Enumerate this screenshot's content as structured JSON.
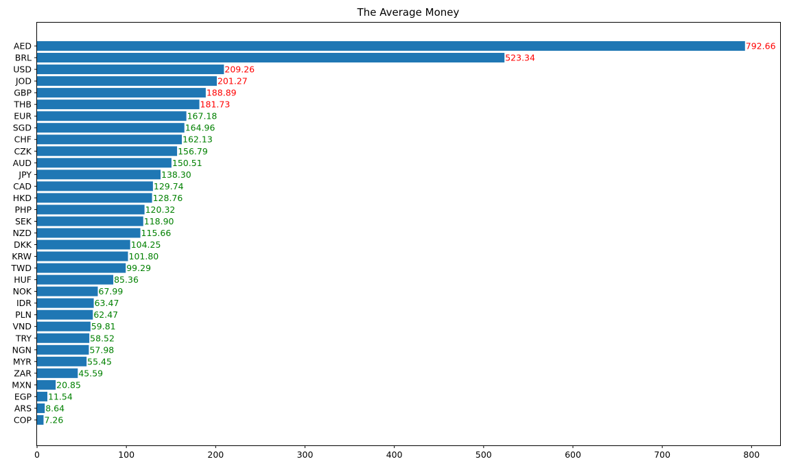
{
  "chart_data": {
    "type": "bar",
    "orientation": "horizontal",
    "title": "The Average Money",
    "xlabel": "",
    "ylabel": "",
    "xlim": [
      0,
      832
    ],
    "xticks": [
      0,
      100,
      200,
      300,
      400,
      500,
      600,
      700,
      800
    ],
    "grid": false,
    "bar_color": "#1f77b4",
    "label_colors": {
      "above_threshold": "#ff0000",
      "below_threshold": "#008000"
    },
    "label_color_threshold": 170,
    "categories": [
      "AED",
      "BRL",
      "USD",
      "JOD",
      "GBP",
      "THB",
      "EUR",
      "SGD",
      "CHF",
      "CZK",
      "AUD",
      "JPY",
      "CAD",
      "HKD",
      "PHP",
      "SEK",
      "NZD",
      "DKK",
      "KRW",
      "TWD",
      "HUF",
      "NOK",
      "IDR",
      "PLN",
      "VND",
      "TRY",
      "NGN",
      "MYR",
      "ZAR",
      "MXN",
      "EGP",
      "ARS",
      "COP"
    ],
    "values": [
      792.66,
      523.34,
      209.26,
      201.27,
      188.89,
      181.73,
      167.18,
      164.96,
      162.13,
      156.79,
      150.51,
      138.3,
      129.74,
      128.76,
      120.32,
      118.9,
      115.66,
      104.25,
      101.8,
      99.29,
      85.36,
      67.99,
      63.47,
      62.47,
      59.81,
      58.52,
      57.98,
      55.45,
      45.59,
      20.85,
      11.54,
      8.64,
      7.26
    ],
    "value_labels": [
      "792.66",
      "523.34",
      "209.26",
      "201.27",
      "188.89",
      "181.73",
      "167.18",
      "164.96",
      "162.13",
      "156.79",
      "150.51",
      "138.30",
      "129.74",
      "128.76",
      "120.32",
      "118.90",
      "115.66",
      "104.25",
      "101.80",
      "99.29",
      "85.36",
      "67.99",
      "63.47",
      "62.47",
      "59.81",
      "58.52",
      "57.98",
      "55.45",
      "45.59",
      "20.85",
      "11.54",
      "8.64",
      "7.26"
    ]
  }
}
